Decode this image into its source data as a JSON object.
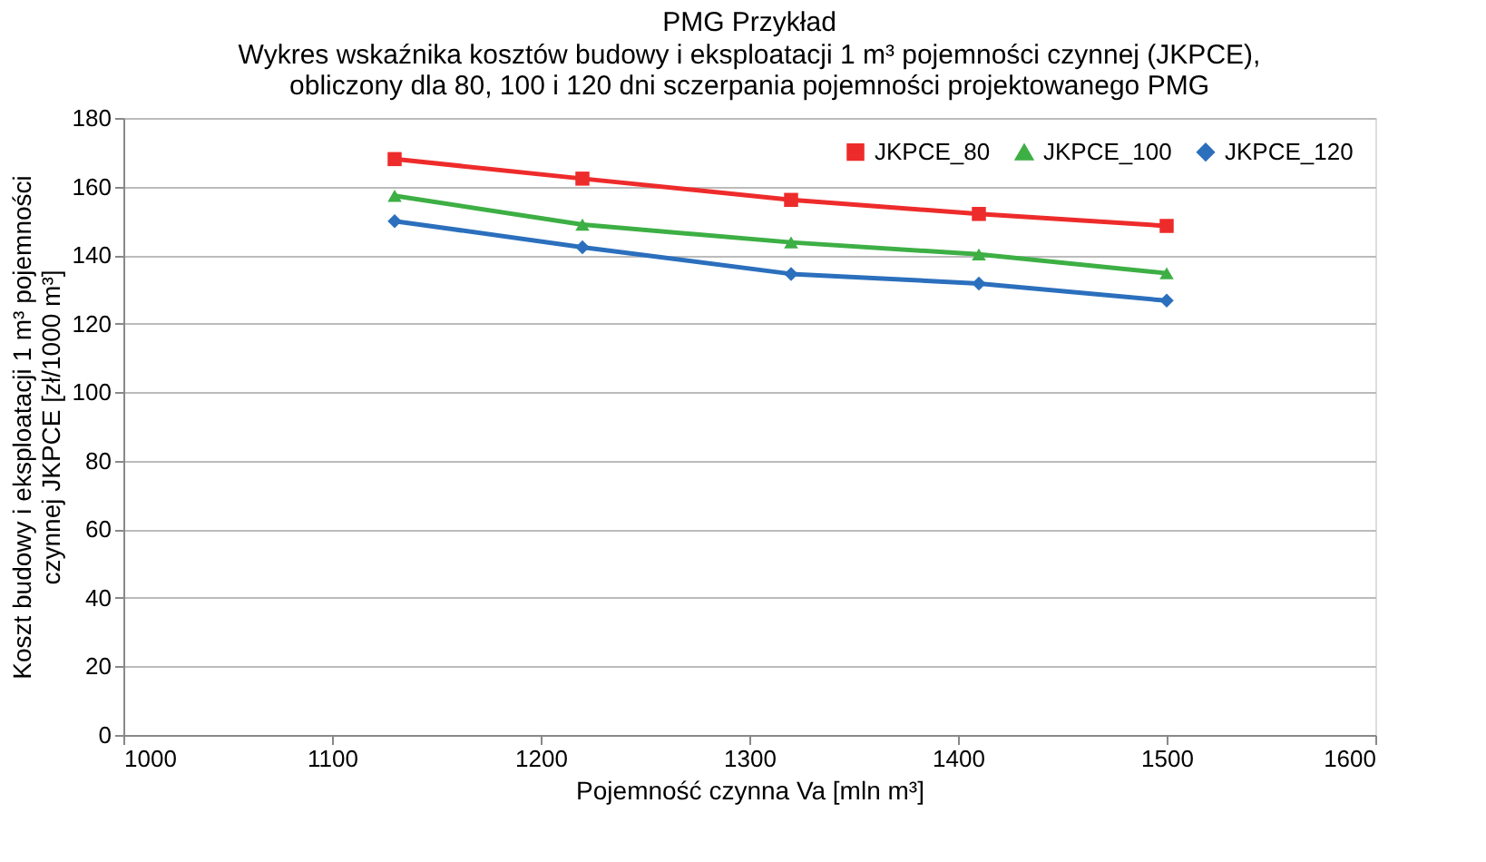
{
  "chart_data": {
    "type": "line",
    "title": "PMG Przykład",
    "subtitle": [
      "Wykres wskaźnika kosztów budowy i eksploatacji 1 m³ pojemności czynnej (JKPCE),",
      "obliczony dla 80, 100 i 120 dni sczerpania pojemności projektowanego PMG"
    ],
    "xlabel": "Pojemność czynna Va [mln m³]",
    "ylabel": [
      "Koszt budowy i eksploatacji 1 m³ pojemności",
      "czynnej JKPCE [zł/1000 m³]"
    ],
    "x": [
      1130,
      1220,
      1320,
      1410,
      1500
    ],
    "series": [
      {
        "name": "JKPCE_80",
        "color": "#ee2b2b",
        "marker": "square",
        "values": [
          168,
          162.3,
          156.1,
          152,
          148.5
        ]
      },
      {
        "name": "JKPCE_100",
        "color": "#3daf44",
        "marker": "triangle",
        "values": [
          157.3,
          148.9,
          143.7,
          140.2,
          134.7
        ]
      },
      {
        "name": "JKPCE_120",
        "color": "#2b6fbd",
        "marker": "diamond",
        "values": [
          149.9,
          142.3,
          134.5,
          131.7,
          126.7
        ]
      }
    ],
    "xlim": [
      1000,
      1600
    ],
    "xticks": [
      1000,
      1100,
      1200,
      1300,
      1400,
      1500,
      1600
    ],
    "ylim": [
      0,
      180
    ],
    "yticks": [
      0,
      20,
      40,
      60,
      80,
      100,
      120,
      140,
      160,
      180
    ],
    "grid": "y",
    "legend": "top right",
    "line_style": "solid"
  }
}
